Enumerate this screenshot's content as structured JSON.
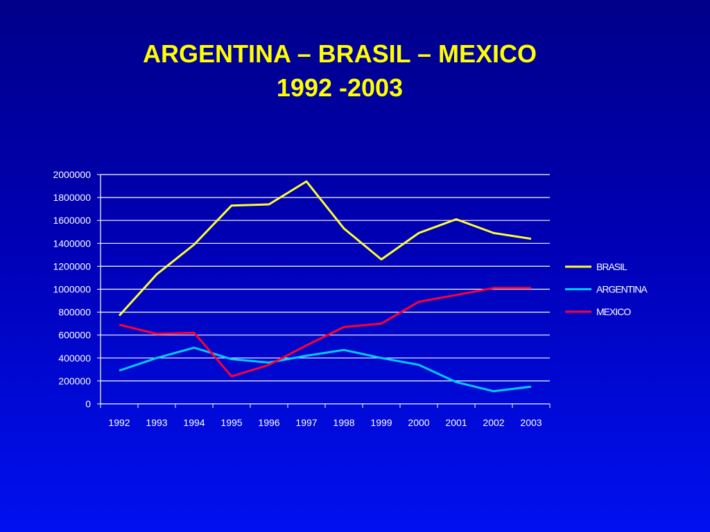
{
  "title": {
    "line1": "ARGENTINA – BRASIL – MEXICO",
    "line2": "1992 -2003"
  },
  "chart_data": {
    "type": "line",
    "title": "ARGENTINA – BRASIL – MEXICO 1992 -2003",
    "xlabel": "",
    "ylabel": "",
    "x": [
      "1992",
      "1993",
      "1994",
      "1995",
      "1996",
      "1997",
      "1998",
      "1999",
      "2000",
      "2001",
      "2002",
      "2003"
    ],
    "ylim": [
      0,
      2000000
    ],
    "yticks": [
      0,
      200000,
      400000,
      600000,
      800000,
      1000000,
      1200000,
      1400000,
      1600000,
      1800000,
      2000000
    ],
    "grid": "horizontal",
    "legend_position": "right",
    "series": [
      {
        "name": "BRASIL",
        "color": "#ffff33",
        "values": [
          770000,
          1130000,
          1390000,
          1730000,
          1740000,
          1940000,
          1530000,
          1260000,
          1490000,
          1610000,
          1490000,
          1440000
        ]
      },
      {
        "name": "ARGENTINA",
        "color": "#00ccff",
        "values": [
          290000,
          400000,
          490000,
          390000,
          360000,
          420000,
          470000,
          400000,
          340000,
          190000,
          110000,
          150000
        ]
      },
      {
        "name": "MEXICO",
        "color": "#ff0033",
        "values": [
          690000,
          610000,
          620000,
          240000,
          340000,
          510000,
          670000,
          700000,
          890000,
          950000,
          1010000,
          1010000
        ]
      }
    ]
  }
}
